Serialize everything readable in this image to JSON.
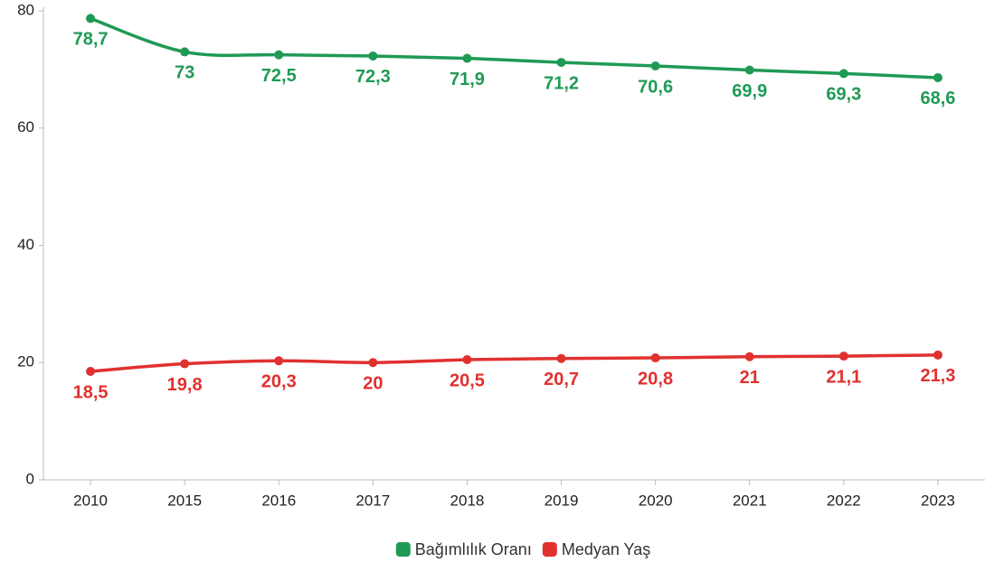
{
  "chart_data": {
    "type": "line",
    "categories": [
      "2010",
      "2015",
      "2016",
      "2017",
      "2018",
      "2019",
      "2020",
      "2021",
      "2022",
      "2023"
    ],
    "series": [
      {
        "name": "Bağımlılık Oranı",
        "color": "#1f9a55",
        "values": [
          78.7,
          73,
          72.5,
          72.3,
          71.9,
          71.2,
          70.6,
          69.9,
          69.3,
          68.6
        ],
        "value_labels": [
          "78,7",
          "73",
          "72,5",
          "72,3",
          "71,9",
          "71,2",
          "70,6",
          "69,9",
          "69,3",
          "68,6"
        ]
      },
      {
        "name": "Medyan Yaş",
        "color": "#e0312f",
        "values": [
          18.5,
          19.8,
          20.3,
          20,
          20.5,
          20.7,
          20.8,
          21,
          21.1,
          21.3
        ],
        "value_labels": [
          "18,5",
          "19,8",
          "20,3",
          "20",
          "20,5",
          "20,7",
          "20,8",
          "21",
          "21,1",
          "21,3"
        ]
      }
    ],
    "ylim": [
      0,
      80
    ],
    "yticks": [
      0,
      20,
      40,
      60,
      80
    ],
    "grid": false,
    "legend": "bottom"
  }
}
